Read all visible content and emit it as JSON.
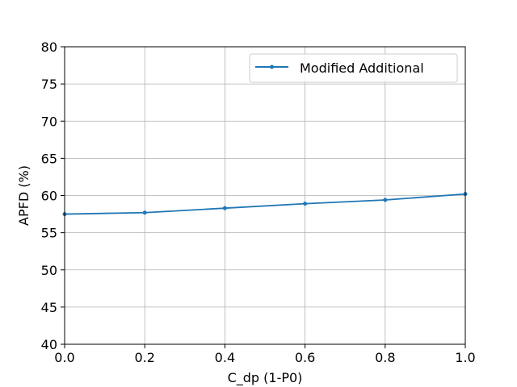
{
  "chart_data": {
    "type": "line",
    "title": "",
    "xlabel": "C_dp (1-P0)",
    "ylabel": "APFD (%)",
    "xlim": [
      0.0,
      1.0
    ],
    "ylim": [
      40,
      80
    ],
    "x_ticks": [
      0.0,
      0.2,
      0.4,
      0.6,
      0.8,
      1.0
    ],
    "x_tick_labels": [
      "0.0",
      "0.2",
      "0.4",
      "0.6",
      "0.8",
      "1.0"
    ],
    "y_ticks": [
      40,
      45,
      50,
      55,
      60,
      65,
      70,
      75,
      80
    ],
    "y_tick_labels": [
      "40",
      "45",
      "50",
      "55",
      "60",
      "65",
      "70",
      "75",
      "80"
    ],
    "grid": true,
    "legend_position": "top-right",
    "series": [
      {
        "name": "Modified Additional",
        "color": "#1f77b4",
        "marker": "point",
        "x": [
          0.0,
          0.2,
          0.4,
          0.6,
          0.8,
          1.0
        ],
        "y": [
          57.5,
          57.7,
          58.3,
          58.9,
          59.4,
          60.2
        ]
      }
    ]
  }
}
